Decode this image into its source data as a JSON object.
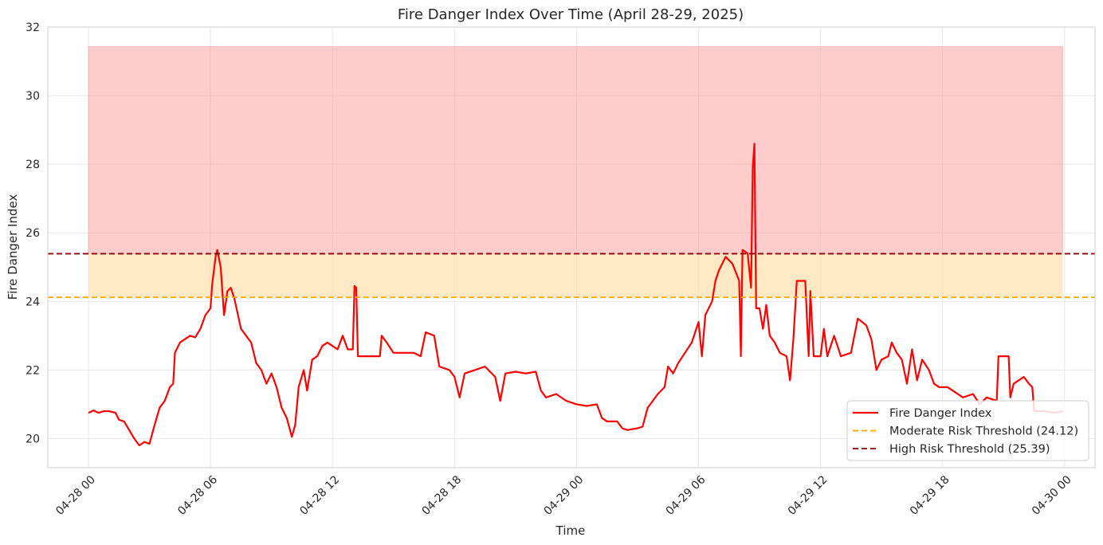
{
  "chart_data": {
    "type": "line",
    "title": "Fire Danger Index Over Time (April 28-29, 2025)",
    "xlabel": "Time",
    "ylabel": "Fire Danger Index",
    "xlim": [
      "2025-04-27 22:00",
      "2025-04-30 01:30"
    ],
    "ylim": [
      19.15,
      32
    ],
    "grid": true,
    "legend_position": "lower right",
    "x_ticks": [
      "04-28 00",
      "04-28 06",
      "04-28 12",
      "04-28 18",
      "04-29 00",
      "04-29 06",
      "04-29 12",
      "04-29 18",
      "04-30 00"
    ],
    "y_ticks": [
      20,
      22,
      24,
      26,
      28,
      30,
      32
    ],
    "colors": {
      "series": "#ff0000",
      "moderate": "#ffa500",
      "high": "#8b0000",
      "high_fill": "#ff9999",
      "moderate_fill": "#ffe0b0"
    },
    "risk_bands": {
      "x_range": [
        "2025-04-28 00:00",
        "2025-04-29 23:55"
      ],
      "moderate": [
        24.12,
        25.39
      ],
      "high": [
        25.39,
        31.43
      ]
    },
    "thresholds": [
      {
        "name": "Moderate Risk Threshold (24.12)",
        "value": 24.12,
        "color": "#ffa500"
      },
      {
        "name": "High Risk Threshold (25.39)",
        "value": 25.39,
        "color": "#8b0000"
      }
    ],
    "series": [
      {
        "name": "Fire Danger Index",
        "color": "#ff0000",
        "points": [
          [
            "2025-04-28 00:00",
            20.75
          ],
          [
            "2025-04-28 00:15",
            20.82
          ],
          [
            "2025-04-28 00:30",
            20.75
          ],
          [
            "2025-04-28 00:45",
            20.8
          ],
          [
            "2025-04-28 01:00",
            20.8
          ],
          [
            "2025-04-28 01:20",
            20.75
          ],
          [
            "2025-04-28 01:30",
            20.55
          ],
          [
            "2025-04-28 01:45",
            20.5
          ],
          [
            "2025-04-28 02:00",
            20.25
          ],
          [
            "2025-04-28 02:15",
            20.0
          ],
          [
            "2025-04-28 02:30",
            19.8
          ],
          [
            "2025-04-28 02:45",
            19.9
          ],
          [
            "2025-04-28 03:00",
            19.85
          ],
          [
            "2025-04-28 03:15",
            20.4
          ],
          [
            "2025-04-28 03:30",
            20.9
          ],
          [
            "2025-04-28 03:45",
            21.1
          ],
          [
            "2025-04-28 04:00",
            21.5
          ],
          [
            "2025-04-28 04:10",
            21.6
          ],
          [
            "2025-04-28 04:15",
            22.5
          ],
          [
            "2025-04-28 04:30",
            22.8
          ],
          [
            "2025-04-28 04:45",
            22.9
          ],
          [
            "2025-04-28 05:00",
            23.0
          ],
          [
            "2025-04-28 05:15",
            22.95
          ],
          [
            "2025-04-28 05:30",
            23.2
          ],
          [
            "2025-04-28 05:45",
            23.6
          ],
          [
            "2025-04-28 06:00",
            23.8
          ],
          [
            "2025-04-28 06:05",
            24.5
          ],
          [
            "2025-04-28 06:10",
            24.9
          ],
          [
            "2025-04-28 06:15",
            25.3
          ],
          [
            "2025-04-28 06:20",
            25.5
          ],
          [
            "2025-04-28 06:30",
            25.0
          ],
          [
            "2025-04-28 06:40",
            23.6
          ],
          [
            "2025-04-28 06:50",
            24.3
          ],
          [
            "2025-04-28 07:00",
            24.4
          ],
          [
            "2025-04-28 07:10",
            24.1
          ],
          [
            "2025-04-28 07:30",
            23.2
          ],
          [
            "2025-04-28 07:45",
            23.0
          ],
          [
            "2025-04-28 08:00",
            22.8
          ],
          [
            "2025-04-28 08:15",
            22.2
          ],
          [
            "2025-04-28 08:30",
            22.0
          ],
          [
            "2025-04-28 08:45",
            21.6
          ],
          [
            "2025-04-28 09:00",
            21.9
          ],
          [
            "2025-04-28 09:15",
            21.5
          ],
          [
            "2025-04-28 09:30",
            20.9
          ],
          [
            "2025-04-28 09:45",
            20.6
          ],
          [
            "2025-04-28 10:00",
            20.05
          ],
          [
            "2025-04-28 10:10",
            20.4
          ],
          [
            "2025-04-28 10:20",
            21.5
          ],
          [
            "2025-04-28 10:35",
            22.0
          ],
          [
            "2025-04-28 10:45",
            21.4
          ],
          [
            "2025-04-28 11:00",
            22.3
          ],
          [
            "2025-04-28 11:15",
            22.4
          ],
          [
            "2025-04-28 11:30",
            22.7
          ],
          [
            "2025-04-28 11:45",
            22.8
          ],
          [
            "2025-04-28 12:00",
            22.7
          ],
          [
            "2025-04-28 12:15",
            22.6
          ],
          [
            "2025-04-28 12:30",
            23.0
          ],
          [
            "2025-04-28 12:45",
            22.6
          ],
          [
            "2025-04-28 13:00",
            22.6
          ],
          [
            "2025-04-28 13:05",
            24.45
          ],
          [
            "2025-04-28 13:10",
            24.4
          ],
          [
            "2025-04-28 13:15",
            22.4
          ],
          [
            "2025-04-28 14:20",
            22.4
          ],
          [
            "2025-04-28 14:25",
            23.0
          ],
          [
            "2025-04-28 14:40",
            22.8
          ],
          [
            "2025-04-28 15:00",
            22.5
          ],
          [
            "2025-04-28 15:30",
            22.5
          ],
          [
            "2025-04-28 16:00",
            22.5
          ],
          [
            "2025-04-28 16:20",
            22.4
          ],
          [
            "2025-04-28 16:35",
            23.1
          ],
          [
            "2025-04-28 17:00",
            23.0
          ],
          [
            "2025-04-28 17:15",
            22.1
          ],
          [
            "2025-04-28 17:45",
            22.0
          ],
          [
            "2025-04-28 18:00",
            21.8
          ],
          [
            "2025-04-28 18:15",
            21.2
          ],
          [
            "2025-04-28 18:30",
            21.9
          ],
          [
            "2025-04-28 19:00",
            22.0
          ],
          [
            "2025-04-28 19:30",
            22.1
          ],
          [
            "2025-04-28 20:00",
            21.8
          ],
          [
            "2025-04-28 20:15",
            21.1
          ],
          [
            "2025-04-28 20:30",
            21.9
          ],
          [
            "2025-04-28 21:00",
            21.95
          ],
          [
            "2025-04-28 21:30",
            21.9
          ],
          [
            "2025-04-28 22:00",
            21.95
          ],
          [
            "2025-04-28 22:15",
            21.4
          ],
          [
            "2025-04-28 22:30",
            21.2
          ],
          [
            "2025-04-28 23:00",
            21.3
          ],
          [
            "2025-04-28 23:30",
            21.1
          ],
          [
            "2025-04-29 00:00",
            21.0
          ],
          [
            "2025-04-29 00:30",
            20.95
          ],
          [
            "2025-04-29 01:00",
            21.0
          ],
          [
            "2025-04-29 01:15",
            20.6
          ],
          [
            "2025-04-29 01:30",
            20.5
          ],
          [
            "2025-04-29 02:00",
            20.5
          ],
          [
            "2025-04-29 02:15",
            20.3
          ],
          [
            "2025-04-29 02:30",
            20.25
          ],
          [
            "2025-04-29 03:00",
            20.3
          ],
          [
            "2025-04-29 03:15",
            20.35
          ],
          [
            "2025-04-29 03:30",
            20.9
          ],
          [
            "2025-04-29 03:45",
            21.1
          ],
          [
            "2025-04-29 04:00",
            21.3
          ],
          [
            "2025-04-29 04:20",
            21.5
          ],
          [
            "2025-04-29 04:30",
            22.1
          ],
          [
            "2025-04-29 04:45",
            21.9
          ],
          [
            "2025-04-29 05:00",
            22.2
          ],
          [
            "2025-04-29 05:20",
            22.5
          ],
          [
            "2025-04-29 05:40",
            22.8
          ],
          [
            "2025-04-29 06:00",
            23.4
          ],
          [
            "2025-04-29 06:10",
            22.4
          ],
          [
            "2025-04-29 06:20",
            23.6
          ],
          [
            "2025-04-29 06:40",
            24.0
          ],
          [
            "2025-04-29 06:50",
            24.6
          ],
          [
            "2025-04-29 07:00",
            24.9
          ],
          [
            "2025-04-29 07:20",
            25.3
          ],
          [
            "2025-04-29 07:40",
            25.1
          ],
          [
            "2025-04-29 08:00",
            24.6
          ],
          [
            "2025-04-29 08:05",
            22.4
          ],
          [
            "2025-04-29 08:10",
            25.5
          ],
          [
            "2025-04-29 08:25",
            25.4
          ],
          [
            "2025-04-29 08:35",
            24.4
          ],
          [
            "2025-04-29 08:40",
            27.9
          ],
          [
            "2025-04-29 08:45",
            28.6
          ],
          [
            "2025-04-29 08:50",
            23.8
          ],
          [
            "2025-04-29 09:00",
            23.8
          ],
          [
            "2025-04-29 09:10",
            23.2
          ],
          [
            "2025-04-29 09:20",
            23.9
          ],
          [
            "2025-04-29 09:30",
            23.0
          ],
          [
            "2025-04-29 09:45",
            22.8
          ],
          [
            "2025-04-29 10:00",
            22.5
          ],
          [
            "2025-04-29 10:20",
            22.4
          ],
          [
            "2025-04-29 10:30",
            21.7
          ],
          [
            "2025-04-29 10:40",
            22.9
          ],
          [
            "2025-04-29 10:50",
            24.6
          ],
          [
            "2025-04-29 11:15",
            24.6
          ],
          [
            "2025-04-29 11:25",
            22.4
          ],
          [
            "2025-04-29 11:30",
            24.3
          ],
          [
            "2025-04-29 11:40",
            22.4
          ],
          [
            "2025-04-29 12:00",
            22.4
          ],
          [
            "2025-04-29 12:10",
            23.2
          ],
          [
            "2025-04-29 12:20",
            22.4
          ],
          [
            "2025-04-29 12:40",
            23.0
          ],
          [
            "2025-04-29 13:00",
            22.4
          ],
          [
            "2025-04-29 13:30",
            22.5
          ],
          [
            "2025-04-29 13:50",
            23.5
          ],
          [
            "2025-04-29 14:15",
            23.3
          ],
          [
            "2025-04-29 14:30",
            22.9
          ],
          [
            "2025-04-29 14:45",
            22.0
          ],
          [
            "2025-04-29 15:00",
            22.3
          ],
          [
            "2025-04-29 15:20",
            22.4
          ],
          [
            "2025-04-29 15:30",
            22.8
          ],
          [
            "2025-04-29 15:45",
            22.5
          ],
          [
            "2025-04-29 16:00",
            22.3
          ],
          [
            "2025-04-29 16:15",
            21.6
          ],
          [
            "2025-04-29 16:30",
            22.6
          ],
          [
            "2025-04-29 16:45",
            21.7
          ],
          [
            "2025-04-29 17:00",
            22.3
          ],
          [
            "2025-04-29 17:20",
            22.0
          ],
          [
            "2025-04-29 17:35",
            21.6
          ],
          [
            "2025-04-29 17:50",
            21.5
          ],
          [
            "2025-04-29 18:15",
            21.5
          ],
          [
            "2025-04-29 18:30",
            21.4
          ],
          [
            "2025-04-29 19:00",
            21.2
          ],
          [
            "2025-04-29 19:30",
            21.3
          ],
          [
            "2025-04-29 19:50",
            21.0
          ],
          [
            "2025-04-29 20:10",
            21.2
          ],
          [
            "2025-04-29 20:40",
            21.1
          ],
          [
            "2025-04-29 20:45",
            22.4
          ],
          [
            "2025-04-29 21:15",
            22.4
          ],
          [
            "2025-04-29 21:20",
            21.2
          ],
          [
            "2025-04-29 21:30",
            21.6
          ],
          [
            "2025-04-29 21:45",
            21.7
          ],
          [
            "2025-04-29 22:00",
            21.8
          ],
          [
            "2025-04-29 22:15",
            21.6
          ],
          [
            "2025-04-29 22:25",
            21.5
          ],
          [
            "2025-04-29 22:30",
            20.8
          ],
          [
            "2025-04-29 23:00",
            20.8
          ],
          [
            "2025-04-29 23:30",
            20.75
          ],
          [
            "2025-04-29 23:55",
            20.8
          ]
        ]
      }
    ],
    "legend": [
      "Fire Danger Index",
      "Moderate Risk Threshold (24.12)",
      "High Risk Threshold (25.39)"
    ]
  }
}
